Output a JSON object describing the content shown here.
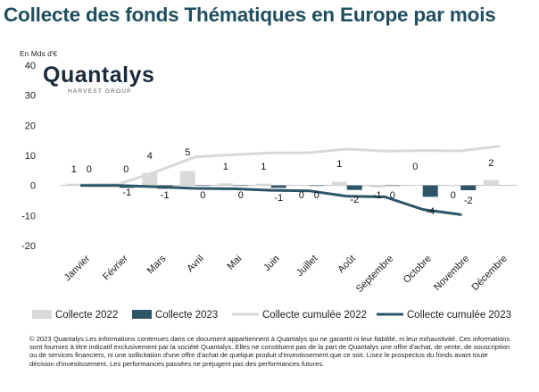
{
  "title": "Collecte des fonds Thématiques en Europe par mois",
  "logo": {
    "name": "Quantalys",
    "sub": "HARVEST GROUP"
  },
  "disclaimer": "© 2023 Quantalys Les informations contenues dans ce document appartiennent à Quantalys qui ne garantit ni leur fiabilité, ni leur exhaustivité. Ces informations sont fournies à titre indicatif exclusivement par la société Quantalys. Elles ne constituent pas de la part de Quantalys une offre d'achat, de vente, de souscription ou de services financiers, ni une sollicitation d'une offre d'achat de quelque produit d'investissement que ce soit. Lisez le prospectus du fonds avant toute décision d'investissement. Les performances passées ne préjugent pas des performances futures.",
  "colors": {
    "bar2022": "#d9d9d9",
    "bar2023": "#2e5467",
    "line2022": "#d9d9d9",
    "line2023": "#2e5467"
  },
  "chart_data": {
    "type": "bar",
    "ylabel": "En Mds d'€",
    "ylim": [
      -20,
      40
    ],
    "yticks": [
      -20,
      -10,
      0,
      10,
      20,
      30,
      40
    ],
    "categories": [
      "Janvier",
      "Février",
      "Mars",
      "Avril",
      "Mai",
      "Juin",
      "Juillet",
      "Août",
      "Septembre",
      "Octobre",
      "Novembre",
      "Décembre"
    ],
    "series": [
      {
        "name": "Collecte 2022",
        "kind": "bar",
        "values": [
          0.6,
          0.0,
          4.2,
          4.8,
          0.7,
          0.6,
          0.1,
          1.2,
          -0.7,
          0.2,
          -0.1,
          1.8
        ],
        "labels": [
          "1",
          "0",
          "4",
          "5",
          "1",
          "1",
          "0",
          "1",
          "-1",
          "0",
          "0",
          "2"
        ]
      },
      {
        "name": "Collecte 2023",
        "kind": "bar",
        "values": [
          0.2,
          -0.8,
          -1.1,
          0.0,
          0.0,
          -0.8,
          0.0,
          -1.5,
          -0.1,
          -3.8,
          -1.6,
          null
        ],
        "labels": [
          "0",
          "-1",
          "-1",
          "0",
          "0",
          "-1",
          "0",
          "-2",
          "0",
          "-4",
          "-2",
          ""
        ]
      },
      {
        "name": "Collecte cumulée 2022",
        "kind": "line",
        "values": [
          0.3,
          0.5,
          4.7,
          9.5,
          10.2,
          10.8,
          10.9,
          12.1,
          11.4,
          11.6,
          11.5,
          13.0
        ]
      },
      {
        "name": "Collecte cumulée 2023",
        "kind": "line",
        "values": [
          0.0,
          0.0,
          -0.5,
          -1.0,
          -1.1,
          -1.6,
          -1.8,
          -3.6,
          -3.8,
          -8.0,
          -9.7,
          null
        ]
      }
    ],
    "legend": "bottom"
  }
}
